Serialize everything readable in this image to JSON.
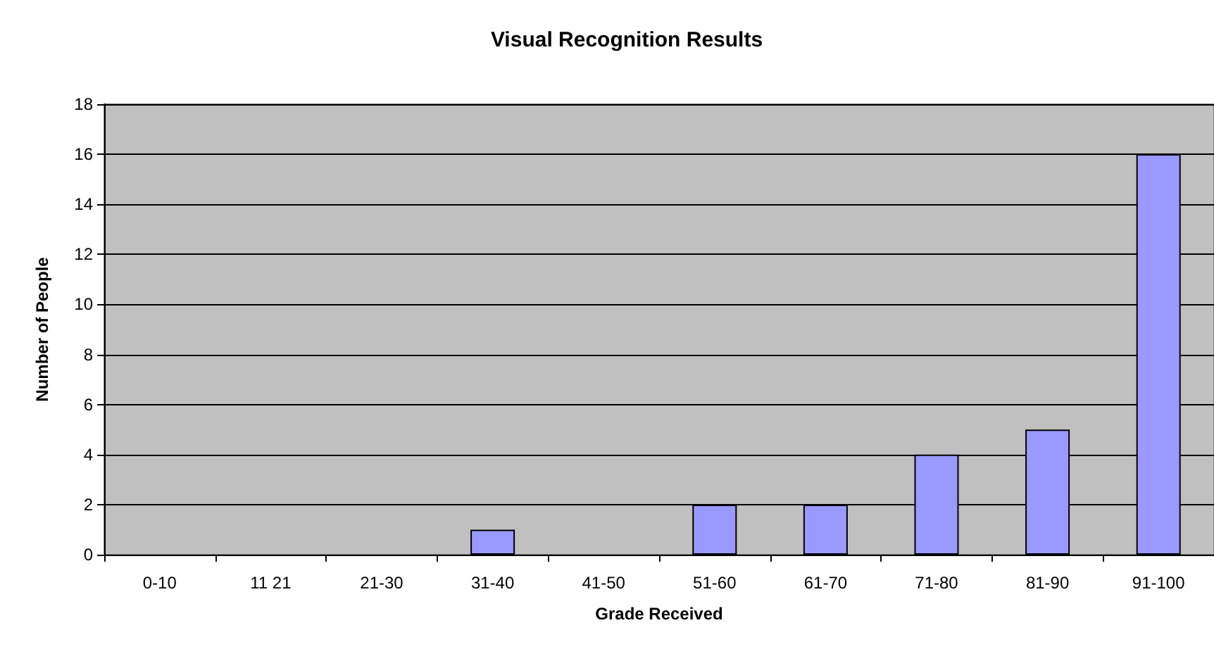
{
  "chart_data": {
    "type": "bar",
    "title": "Visual Recognition Results",
    "xlabel": "Grade Received",
    "ylabel": "Number of People",
    "categories": [
      "0-10",
      "11 21",
      "21-30",
      "31-40",
      "41-50",
      "51-60",
      "61-70",
      "71-80",
      "81-90",
      "91-100"
    ],
    "values": [
      0,
      0,
      0,
      1,
      0,
      2,
      2,
      4,
      5,
      16
    ],
    "color": "#9999ff",
    "ylim": [
      0,
      18
    ],
    "yticks": [
      0,
      2,
      4,
      6,
      8,
      10,
      12,
      14,
      16,
      18
    ],
    "grid": "y"
  }
}
